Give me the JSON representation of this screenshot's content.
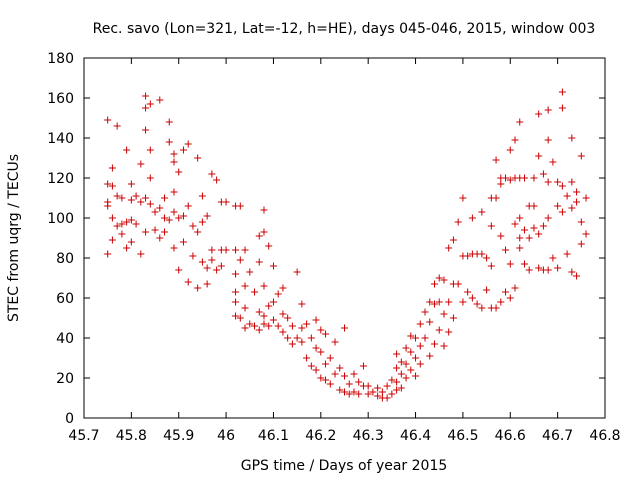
{
  "chart_data": {
    "type": "scatter",
    "title": "Rec. savo (Lon=321, Lat=-12, h=HE), days 045-046, 2015, window 003",
    "xlabel": "GPS time / Days of year 2015",
    "ylabel": "STEC from uqrg / TECUs",
    "xlim": [
      45.7,
      46.8
    ],
    "ylim": [
      0,
      180
    ],
    "xticks": [
      "45.7",
      "45.8",
      "45.9",
      "46",
      "46.1",
      "46.2",
      "46.3",
      "46.4",
      "46.5",
      "46.6",
      "46.7",
      "46.8"
    ],
    "yticks": [
      "0",
      "20",
      "40",
      "60",
      "80",
      "100",
      "120",
      "140",
      "160",
      "180"
    ],
    "marker": "plus",
    "color": "#cc0000",
    "grid": false,
    "legend": "none",
    "points": [
      [
        45.75,
        149
      ],
      [
        45.75,
        117
      ],
      [
        45.75,
        108
      ],
      [
        45.75,
        106
      ],
      [
        45.75,
        82
      ],
      [
        45.76,
        125
      ],
      [
        45.76,
        116
      ],
      [
        45.76,
        100
      ],
      [
        45.76,
        89
      ],
      [
        45.77,
        111
      ],
      [
        45.77,
        96
      ],
      [
        45.77,
        146
      ],
      [
        45.78,
        110
      ],
      [
        45.78,
        97
      ],
      [
        45.78,
        92
      ],
      [
        45.79,
        134
      ],
      [
        45.79,
        98
      ],
      [
        45.79,
        85
      ],
      [
        45.8,
        117
      ],
      [
        45.8,
        109
      ],
      [
        45.8,
        99
      ],
      [
        45.8,
        88
      ],
      [
        45.81,
        111
      ],
      [
        45.81,
        97
      ],
      [
        45.82,
        127
      ],
      [
        45.82,
        108
      ],
      [
        45.82,
        82
      ],
      [
        45.83,
        161
      ],
      [
        45.83,
        155
      ],
      [
        45.83,
        144
      ],
      [
        45.83,
        110
      ],
      [
        45.83,
        93
      ],
      [
        45.84,
        157
      ],
      [
        45.84,
        134
      ],
      [
        45.84,
        120
      ],
      [
        45.84,
        107
      ],
      [
        45.85,
        103
      ],
      [
        45.85,
        94
      ],
      [
        45.86,
        159
      ],
      [
        45.86,
        105
      ],
      [
        45.86,
        90
      ],
      [
        45.87,
        110
      ],
      [
        45.87,
        100
      ],
      [
        45.87,
        93
      ],
      [
        45.88,
        148
      ],
      [
        45.88,
        138
      ],
      [
        45.88,
        99
      ],
      [
        45.89,
        132
      ],
      [
        45.89,
        128
      ],
      [
        45.89,
        113
      ],
      [
        45.89,
        103
      ],
      [
        45.89,
        85
      ],
      [
        45.9,
        123
      ],
      [
        45.9,
        100
      ],
      [
        45.9,
        74
      ],
      [
        45.91,
        134
      ],
      [
        45.91,
        101
      ],
      [
        45.91,
        88
      ],
      [
        45.92,
        137
      ],
      [
        45.92,
        106
      ],
      [
        45.92,
        68
      ],
      [
        45.93,
        96
      ],
      [
        45.93,
        81
      ],
      [
        45.94,
        130
      ],
      [
        45.94,
        93
      ],
      [
        45.94,
        65
      ],
      [
        45.95,
        111
      ],
      [
        45.95,
        98
      ],
      [
        45.95,
        78
      ],
      [
        45.96,
        101
      ],
      [
        45.96,
        75
      ],
      [
        45.96,
        67
      ],
      [
        45.97,
        122
      ],
      [
        45.97,
        84
      ],
      [
        45.97,
        79
      ],
      [
        45.98,
        119
      ],
      [
        45.98,
        74
      ],
      [
        45.99,
        108
      ],
      [
        45.99,
        84
      ],
      [
        45.99,
        76
      ],
      [
        46,
        84
      ],
      [
        46,
        108
      ],
      [
        46.02,
        106
      ],
      [
        46.02,
        84
      ],
      [
        46.02,
        72
      ],
      [
        46.02,
        63
      ],
      [
        46.02,
        58
      ],
      [
        46.02,
        51
      ],
      [
        46.03,
        106
      ],
      [
        46.03,
        79
      ],
      [
        46.03,
        50
      ],
      [
        46.04,
        84
      ],
      [
        46.04,
        66
      ],
      [
        46.04,
        55
      ],
      [
        46.04,
        45
      ],
      [
        46.05,
        73
      ],
      [
        46.05,
        47
      ],
      [
        46.06,
        63
      ],
      [
        46.06,
        46
      ],
      [
        46.07,
        91
      ],
      [
        46.07,
        78
      ],
      [
        46.07,
        53
      ],
      [
        46.07,
        44
      ],
      [
        46.08,
        104
      ],
      [
        46.08,
        93
      ],
      [
        46.08,
        66
      ],
      [
        46.08,
        51
      ],
      [
        46.08,
        47
      ],
      [
        46.09,
        86
      ],
      [
        46.09,
        56
      ],
      [
        46.09,
        46
      ],
      [
        46.1,
        76
      ],
      [
        46.1,
        58
      ],
      [
        46.1,
        49
      ],
      [
        46.11,
        46
      ],
      [
        46.11,
        62
      ],
      [
        46.12,
        65
      ],
      [
        46.12,
        52
      ],
      [
        46.12,
        43
      ],
      [
        46.13,
        50
      ],
      [
        46.13,
        40
      ],
      [
        46.14,
        46
      ],
      [
        46.14,
        37
      ],
      [
        46.15,
        40
      ],
      [
        46.15,
        73
      ],
      [
        46.16,
        45
      ],
      [
        46.16,
        57
      ],
      [
        46.16,
        38
      ],
      [
        46.17,
        47
      ],
      [
        46.17,
        30
      ],
      [
        46.18,
        40
      ],
      [
        46.18,
        26
      ],
      [
        46.19,
        49
      ],
      [
        46.19,
        35
      ],
      [
        46.19,
        24
      ],
      [
        46.2,
        44
      ],
      [
        46.2,
        33
      ],
      [
        46.2,
        20
      ],
      [
        46.21,
        42
      ],
      [
        46.21,
        27
      ],
      [
        46.21,
        19
      ],
      [
        46.22,
        30
      ],
      [
        46.22,
        17
      ],
      [
        46.23,
        38
      ],
      [
        46.23,
        22
      ],
      [
        46.24,
        25
      ],
      [
        46.24,
        14
      ],
      [
        46.25,
        45
      ],
      [
        46.25,
        21
      ],
      [
        46.25,
        13
      ],
      [
        46.26,
        17
      ],
      [
        46.26,
        12
      ],
      [
        46.27,
        22
      ],
      [
        46.27,
        13
      ],
      [
        46.28,
        18
      ],
      [
        46.28,
        12
      ],
      [
        46.29,
        26
      ],
      [
        46.29,
        16
      ],
      [
        46.3,
        16
      ],
      [
        46.3,
        12
      ],
      [
        46.31,
        13
      ],
      [
        46.32,
        15
      ],
      [
        46.32,
        11
      ],
      [
        46.33,
        13
      ],
      [
        46.33,
        10
      ],
      [
        46.34,
        16
      ],
      [
        46.34,
        10
      ],
      [
        46.35,
        19
      ],
      [
        46.35,
        12
      ],
      [
        46.36,
        32
      ],
      [
        46.36,
        25
      ],
      [
        46.36,
        18
      ],
      [
        46.36,
        14
      ],
      [
        46.37,
        28
      ],
      [
        46.37,
        22
      ],
      [
        46.37,
        15
      ],
      [
        46.38,
        35
      ],
      [
        46.38,
        27
      ],
      [
        46.38,
        20
      ],
      [
        46.39,
        41
      ],
      [
        46.39,
        33
      ],
      [
        46.39,
        24
      ],
      [
        46.4,
        40
      ],
      [
        46.4,
        30
      ],
      [
        46.4,
        21
      ],
      [
        46.41,
        47
      ],
      [
        46.41,
        36
      ],
      [
        46.41,
        27
      ],
      [
        46.42,
        53
      ],
      [
        46.42,
        40
      ],
      [
        46.43,
        58
      ],
      [
        46.43,
        48
      ],
      [
        46.43,
        31
      ],
      [
        46.44,
        67
      ],
      [
        46.44,
        57
      ],
      [
        46.44,
        37
      ],
      [
        46.45,
        70
      ],
      [
        46.45,
        58
      ],
      [
        46.45,
        44
      ],
      [
        46.46,
        69
      ],
      [
        46.46,
        52
      ],
      [
        46.46,
        36
      ],
      [
        46.47,
        85
      ],
      [
        46.47,
        58
      ],
      [
        46.47,
        43
      ],
      [
        46.48,
        89
      ],
      [
        46.48,
        67
      ],
      [
        46.48,
        50
      ],
      [
        46.49,
        98
      ],
      [
        46.49,
        67
      ],
      [
        46.5,
        110
      ],
      [
        46.5,
        81
      ],
      [
        46.5,
        58
      ],
      [
        46.51,
        81
      ],
      [
        46.51,
        63
      ],
      [
        46.52,
        100
      ],
      [
        46.52,
        82
      ],
      [
        46.52,
        60
      ],
      [
        46.53,
        82
      ],
      [
        46.53,
        57
      ],
      [
        46.54,
        103
      ],
      [
        46.54,
        82
      ],
      [
        46.54,
        55
      ],
      [
        46.55,
        80
      ],
      [
        46.55,
        64
      ],
      [
        46.56,
        110
      ],
      [
        46.56,
        96
      ],
      [
        46.56,
        76
      ],
      [
        46.56,
        55
      ],
      [
        46.57,
        129
      ],
      [
        46.57,
        110
      ],
      [
        46.57,
        55
      ],
      [
        46.58,
        120
      ],
      [
        46.58,
        117
      ],
      [
        46.58,
        91
      ],
      [
        46.58,
        58
      ],
      [
        46.59,
        120
      ],
      [
        46.59,
        84
      ],
      [
        46.59,
        63
      ],
      [
        46.6,
        134
      ],
      [
        46.6,
        119
      ],
      [
        46.6,
        77
      ],
      [
        46.6,
        60
      ],
      [
        46.61,
        139
      ],
      [
        46.61,
        120
      ],
      [
        46.61,
        97
      ],
      [
        46.61,
        65
      ],
      [
        46.62,
        148
      ],
      [
        46.62,
        120
      ],
      [
        46.62,
        100
      ],
      [
        46.62,
        90
      ],
      [
        46.62,
        85
      ],
      [
        46.63,
        120
      ],
      [
        46.63,
        94
      ],
      [
        46.63,
        77
      ],
      [
        46.64,
        106
      ],
      [
        46.64,
        90
      ],
      [
        46.64,
        74
      ],
      [
        46.65,
        120
      ],
      [
        46.65,
        106
      ],
      [
        46.65,
        95
      ],
      [
        46.66,
        152
      ],
      [
        46.66,
        131
      ],
      [
        46.66,
        92
      ],
      [
        46.66,
        75
      ],
      [
        46.67,
        122
      ],
      [
        46.67,
        96
      ],
      [
        46.67,
        74
      ],
      [
        46.68,
        154
      ],
      [
        46.68,
        139
      ],
      [
        46.68,
        118
      ],
      [
        46.68,
        100
      ],
      [
        46.68,
        74
      ],
      [
        46.69,
        128
      ],
      [
        46.69,
        80
      ],
      [
        46.7,
        118
      ],
      [
        46.7,
        106
      ],
      [
        46.7,
        75
      ],
      [
        46.71,
        163
      ],
      [
        46.71,
        155
      ],
      [
        46.71,
        116
      ],
      [
        46.71,
        103
      ],
      [
        46.72,
        111
      ],
      [
        46.72,
        82
      ],
      [
        46.73,
        140
      ],
      [
        46.73,
        118
      ],
      [
        46.73,
        105
      ],
      [
        46.73,
        73
      ],
      [
        46.74,
        113
      ],
      [
        46.74,
        108
      ],
      [
        46.74,
        71
      ],
      [
        46.75,
        131
      ],
      [
        46.75,
        98
      ],
      [
        46.75,
        87
      ],
      [
        46.76,
        110
      ],
      [
        46.76,
        92
      ]
    ]
  }
}
